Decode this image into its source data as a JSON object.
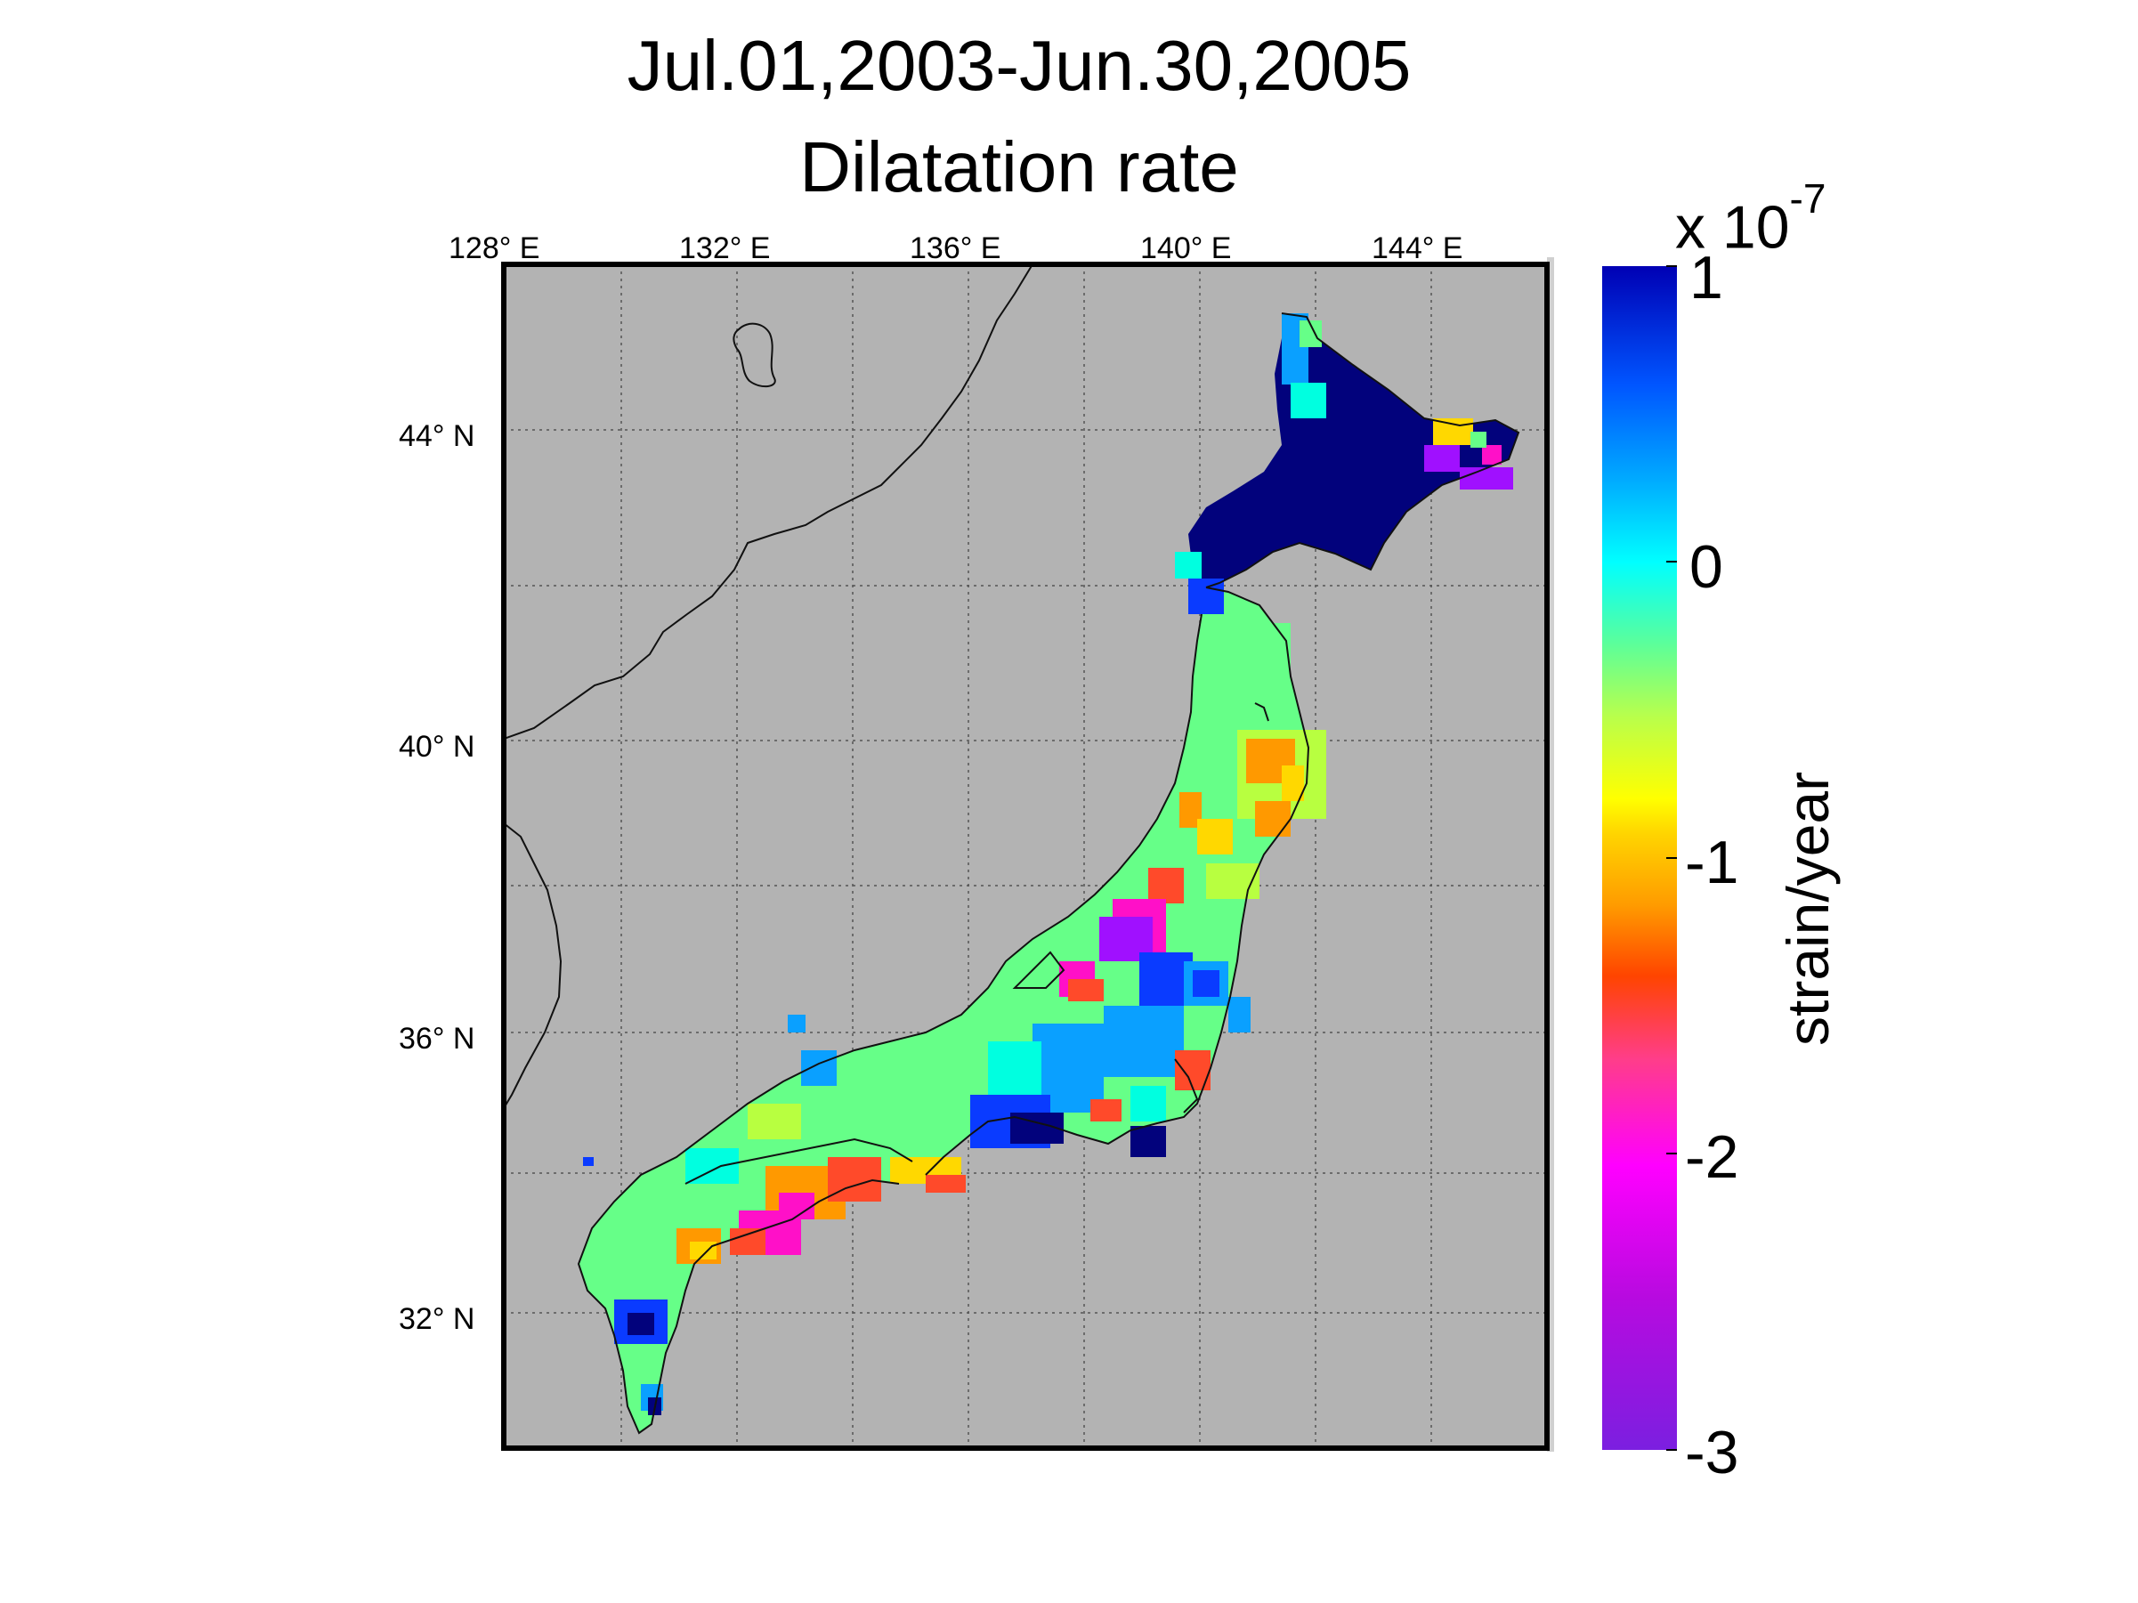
{
  "title": {
    "line1": "Jul.01,2003-Jun.30,2005",
    "line2": "Dilatation rate"
  },
  "map": {
    "background_color": "#b3b3b3",
    "frame_color": "#000000",
    "lon_ticks": [
      "128° E",
      "132° E",
      "136° E",
      "140° E",
      "144° E"
    ],
    "lat_ticks": [
      "44° N",
      "40° N",
      "36° N",
      "32° N"
    ],
    "grid": "dotted"
  },
  "colorbar": {
    "label": "strain/year",
    "multiplier_base": "x 10",
    "multiplier_exponent": "-7",
    "ticks": [
      "1",
      "0",
      "-1",
      "-2",
      "-3"
    ],
    "range": [
      -3,
      1
    ],
    "colors": [
      "#7b1fe0",
      "#b80ae0",
      "#ff00ff",
      "#ff3d8a",
      "#ff4400",
      "#ff9b00",
      "#ffd400",
      "#ffff00",
      "#b8ff4c",
      "#5dff99",
      "#00ffff",
      "#00aaff",
      "#0055ff",
      "#0000b4"
    ]
  },
  "field_colors": {
    "strong_expansion": "#02027c",
    "expansion": "#0a3bff",
    "slight_expansion": "#0aa0ff",
    "neutral": "#00ffe0",
    "slight_contraction": "#66ff88",
    "moderate_contraction": "#b8ff40",
    "contraction": "#ffd800",
    "strong_contraction": "#ff9900",
    "very_strong_contraction": "#ff4a2a",
    "extreme_contraction": "#ff10c8",
    "maximum_contraction": "#a010ff"
  }
}
